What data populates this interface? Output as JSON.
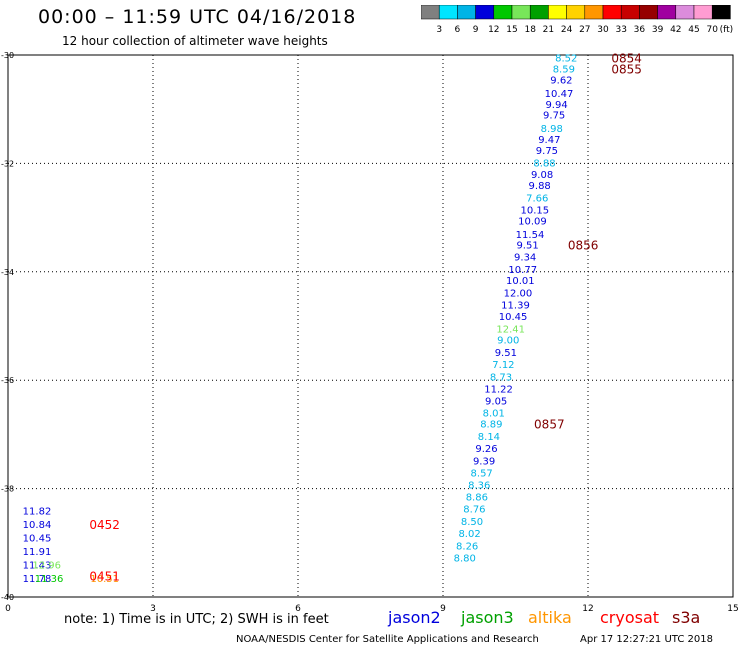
{
  "header": {
    "title": "00:00 – 11:59 UTC 04/16/2018",
    "subtitle": "12 hour collection of altimeter wave heights"
  },
  "colorbar": {
    "labels": [
      "3",
      "6",
      "9",
      "12",
      "15",
      "18",
      "21",
      "24",
      "27",
      "30",
      "33",
      "36",
      "39",
      "42",
      "45",
      "70"
    ],
    "unit": "(ft)",
    "colors": [
      "#808080",
      "#00e5ff",
      "#00b4e6",
      "#0000dc",
      "#00c800",
      "#78e65a",
      "#00a000",
      "#ffff00",
      "#ffd200",
      "#ff9600",
      "#ff0000",
      "#c80000",
      "#960000",
      "#a000a0",
      "#dc8cdc",
      "#ff9cd2",
      "#000000"
    ]
  },
  "chart_data": {
    "type": "scatter",
    "title": "00:00 – 11:59 UTC 04/16/2018",
    "subtitle": "12 hour collection of altimeter wave heights",
    "xlim": [
      0,
      15
    ],
    "ylim": [
      -40,
      -30
    ],
    "x_ticks": [
      "0",
      "3",
      "6",
      "9",
      "12",
      "15"
    ],
    "y_ticks": [
      "-30",
      "-32",
      "-34",
      "-36",
      "-38",
      "-40"
    ],
    "y_tick_values": [
      -30,
      -32,
      -34,
      -36,
      -38,
      -40
    ],
    "x_tick_values": [
      0,
      3,
      6,
      9,
      12,
      15
    ],
    "grid": true,
    "labels": [
      {
        "x": 11.55,
        "y": -30.05,
        "text": "8.52",
        "color": "#00b4e6"
      },
      {
        "x": 11.5,
        "y": -30.25,
        "text": "8.59",
        "color": "#00b4e6"
      },
      {
        "x": 11.45,
        "y": -30.45,
        "text": "9.62",
        "color": "#0000dc"
      },
      {
        "x": 11.4,
        "y": -30.7,
        "text": "10.47",
        "color": "#0000dc"
      },
      {
        "x": 11.35,
        "y": -30.9,
        "text": "9.94",
        "color": "#0000dc"
      },
      {
        "x": 11.3,
        "y": -31.1,
        "text": "9.75",
        "color": "#0000dc"
      },
      {
        "x": 11.25,
        "y": -31.35,
        "text": "8.98",
        "color": "#00b4e6"
      },
      {
        "x": 11.2,
        "y": -31.55,
        "text": "9.47",
        "color": "#0000dc"
      },
      {
        "x": 11.15,
        "y": -31.75,
        "text": "9.75",
        "color": "#0000dc"
      },
      {
        "x": 11.1,
        "y": -31.98,
        "text": "8.88",
        "color": "#00b4e6"
      },
      {
        "x": 11.05,
        "y": -32.2,
        "text": "9.08",
        "color": "#0000dc"
      },
      {
        "x": 11.0,
        "y": -32.4,
        "text": "9.88",
        "color": "#0000dc"
      },
      {
        "x": 10.95,
        "y": -32.63,
        "text": "7.66",
        "color": "#00b4e6"
      },
      {
        "x": 10.9,
        "y": -32.85,
        "text": "10.15",
        "color": "#0000dc"
      },
      {
        "x": 10.85,
        "y": -33.05,
        "text": "10.09",
        "color": "#0000dc"
      },
      {
        "x": 10.8,
        "y": -33.3,
        "text": "11.54",
        "color": "#0000dc"
      },
      {
        "x": 10.75,
        "y": -33.5,
        "text": "9.51",
        "color": "#0000dc"
      },
      {
        "x": 10.7,
        "y": -33.72,
        "text": "9.34",
        "color": "#0000dc"
      },
      {
        "x": 10.65,
        "y": -33.95,
        "text": "10.77",
        "color": "#0000dc"
      },
      {
        "x": 10.6,
        "y": -34.15,
        "text": "10.01",
        "color": "#0000dc"
      },
      {
        "x": 10.55,
        "y": -34.38,
        "text": "12.00",
        "color": "#0000dc"
      },
      {
        "x": 10.5,
        "y": -34.6,
        "text": "11.39",
        "color": "#0000dc"
      },
      {
        "x": 10.45,
        "y": -34.82,
        "text": "10.45",
        "color": "#0000dc"
      },
      {
        "x": 10.4,
        "y": -35.05,
        "text": "12.41",
        "color": "#78e65a"
      },
      {
        "x": 10.35,
        "y": -35.25,
        "text": "9.00",
        "color": "#00b4e6"
      },
      {
        "x": 10.3,
        "y": -35.48,
        "text": "9.51",
        "color": "#0000dc"
      },
      {
        "x": 10.25,
        "y": -35.7,
        "text": "7.12",
        "color": "#00b4e6"
      },
      {
        "x": 10.2,
        "y": -35.93,
        "text": "8.73",
        "color": "#00b4e6"
      },
      {
        "x": 10.15,
        "y": -36.15,
        "text": "11.22",
        "color": "#0000dc"
      },
      {
        "x": 10.1,
        "y": -36.37,
        "text": "9.05",
        "color": "#0000dc"
      },
      {
        "x": 10.05,
        "y": -36.6,
        "text": "8.01",
        "color": "#00b4e6"
      },
      {
        "x": 10.0,
        "y": -36.8,
        "text": "8.89",
        "color": "#00b4e6"
      },
      {
        "x": 9.95,
        "y": -37.03,
        "text": "8.14",
        "color": "#00b4e6"
      },
      {
        "x": 9.9,
        "y": -37.25,
        "text": "9.26",
        "color": "#0000dc"
      },
      {
        "x": 9.85,
        "y": -37.48,
        "text": "9.39",
        "color": "#0000dc"
      },
      {
        "x": 9.8,
        "y": -37.7,
        "text": "8.57",
        "color": "#00b4e6"
      },
      {
        "x": 9.75,
        "y": -37.92,
        "text": "8.36",
        "color": "#00b4e6"
      },
      {
        "x": 9.7,
        "y": -38.15,
        "text": "8.86",
        "color": "#00b4e6"
      },
      {
        "x": 9.65,
        "y": -38.37,
        "text": "8.76",
        "color": "#00b4e6"
      },
      {
        "x": 9.6,
        "y": -38.6,
        "text": "8.50",
        "color": "#00b4e6"
      },
      {
        "x": 9.55,
        "y": -38.82,
        "text": "8.02",
        "color": "#00b4e6"
      },
      {
        "x": 9.5,
        "y": -39.05,
        "text": "8.26",
        "color": "#00b4e6"
      },
      {
        "x": 9.45,
        "y": -39.27,
        "text": "8.80",
        "color": "#00b4e6"
      },
      {
        "x": 0.6,
        "y": -38.4,
        "text": "11.82",
        "color": "#0000dc"
      },
      {
        "x": 0.6,
        "y": -38.65,
        "text": "10.84",
        "color": "#0000dc"
      },
      {
        "x": 0.6,
        "y": -38.9,
        "text": "10.45",
        "color": "#0000dc"
      },
      {
        "x": 0.6,
        "y": -39.15,
        "text": "11.91",
        "color": "#0000dc"
      },
      {
        "x": 0.6,
        "y": -39.4,
        "text": "11.43",
        "color": "#0000dc"
      },
      {
        "x": 0.8,
        "y": -39.4,
        "text": "12.96",
        "color": "#78e65a"
      },
      {
        "x": 0.6,
        "y": -39.65,
        "text": "11.78",
        "color": "#0000dc"
      },
      {
        "x": 0.85,
        "y": -39.65,
        "text": "11.36",
        "color": "#00c800"
      },
      {
        "x": 2.0,
        "y": -39.65,
        "text": "10.51",
        "color": "#ff9600"
      }
    ],
    "time_labels": [
      {
        "x": 12.8,
        "y": -30.05,
        "text": "0854",
        "color": "#800000"
      },
      {
        "x": 12.8,
        "y": -30.25,
        "text": "0855",
        "color": "#800000"
      },
      {
        "x": 11.9,
        "y": -33.5,
        "text": "0856",
        "color": "#800000"
      },
      {
        "x": 11.2,
        "y": -36.8,
        "text": "0857",
        "color": "#800000"
      },
      {
        "x": 2.0,
        "y": -38.65,
        "text": "0452",
        "color": "#ff0000"
      },
      {
        "x": 2.0,
        "y": -39.6,
        "text": "0451",
        "color": "#ff0000"
      }
    ]
  },
  "notes": {
    "note": "note: 1) Time is in UTC; 2) SWH is in feet",
    "satellites": [
      {
        "name": "jason2",
        "color": "#0000dc"
      },
      {
        "name": "jason3",
        "color": "#00a000"
      },
      {
        "name": "altika",
        "color": "#ff9600"
      },
      {
        "name": "cryosat",
        "color": "#ff0000"
      },
      {
        "name": "s3a",
        "color": "#800000"
      }
    ],
    "footer": "NOAA/NESDIS Center for Satellite Applications and Research",
    "stamp": "Apr 17 12:27:21 UTC 2018"
  }
}
